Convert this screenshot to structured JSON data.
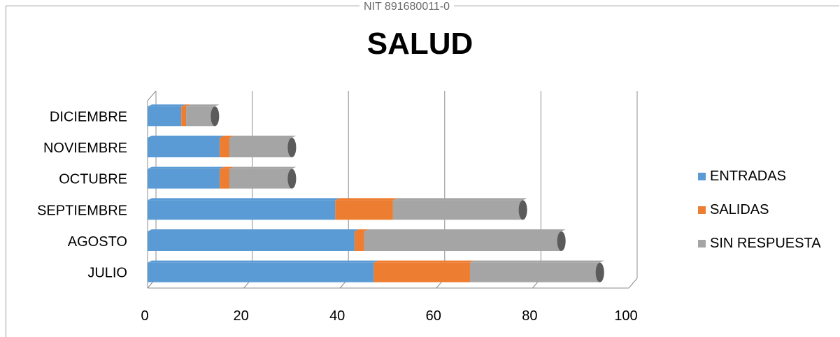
{
  "header": {
    "text": "NIT  891680011-0"
  },
  "chart_data": {
    "type": "bar",
    "orientation": "horizontal",
    "stacked": true,
    "title": "SALUD",
    "categories": [
      "JULIO",
      "AGOSTO",
      "SEPTIEMBRE",
      "OCTUBRE",
      "NOVIEMBRE",
      "DICIEMBRE"
    ],
    "series": [
      {
        "name": "ENTRADAS",
        "color": "#5b9bd5",
        "values": [
          47,
          43,
          39,
          15,
          15,
          7
        ]
      },
      {
        "name": "SALIDAS",
        "color": "#ed7d31",
        "values": [
          20,
          2,
          12,
          2,
          2,
          1
        ]
      },
      {
        "name": "SIN RESPUESTA",
        "color": "#a5a5a5",
        "values": [
          27,
          41,
          27,
          13,
          13,
          6
        ]
      }
    ],
    "xlim": [
      0,
      100
    ],
    "xticks": [
      "0",
      "20",
      "40",
      "60",
      "80",
      "100"
    ],
    "grid": true,
    "legend_position": "right"
  }
}
